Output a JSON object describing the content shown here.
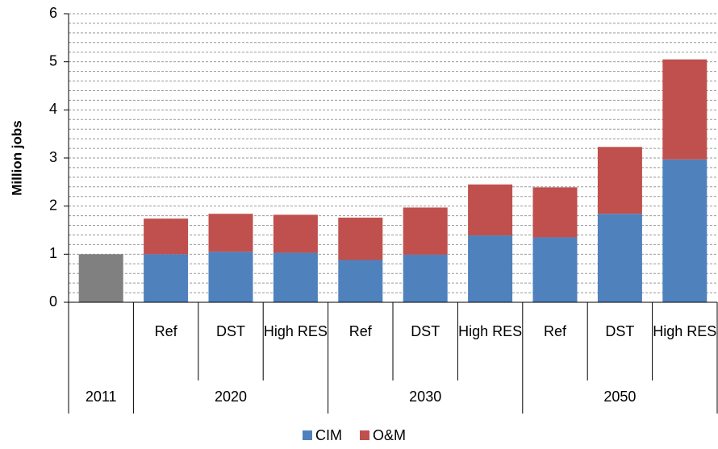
{
  "chart_data": {
    "type": "stacked_bar",
    "y_label": "Million jobs",
    "groups": [
      {
        "name": "2011",
        "categories": [
          null
        ]
      },
      {
        "name": "2020",
        "categories": [
          "Ref",
          "DST",
          "High RES"
        ]
      },
      {
        "name": "2030",
        "categories": [
          "Ref",
          "DST",
          "High RES"
        ]
      },
      {
        "name": "2050",
        "categories": [
          "Ref",
          "DST",
          "High RES"
        ]
      }
    ],
    "series": [
      {
        "color": "#808080",
        "values": [
          1.0,
          null,
          null,
          null,
          null,
          null,
          null,
          null,
          null,
          null
        ]
      },
      {
        "name": "CIM",
        "color": "#4f81bd",
        "values": [
          null,
          1.0,
          1.05,
          1.03,
          0.88,
          0.99,
          1.39,
          1.35,
          1.84,
          2.97
        ]
      },
      {
        "name": "O&M",
        "color": "#c0504d",
        "values": [
          null,
          0.74,
          0.79,
          0.79,
          0.88,
          0.98,
          1.06,
          1.04,
          1.39,
          2.08
        ]
      }
    ],
    "ylim": [
      0,
      6
    ],
    "yticks": [
      0,
      1,
      2,
      3,
      4,
      5,
      6
    ],
    "grid_step": 0.2
  }
}
